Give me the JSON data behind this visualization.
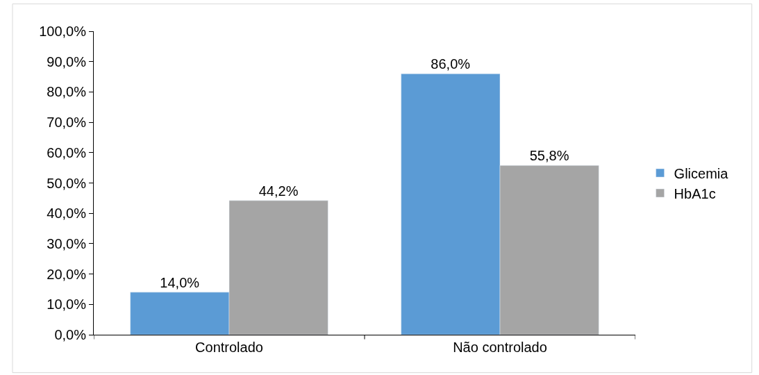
{
  "chart_data": {
    "type": "bar",
    "categories": [
      "Controlado",
      "Não controlado"
    ],
    "series": [
      {
        "name": "Glicemia",
        "color": "#5b9bd5",
        "values": [
          14.0,
          86.0
        ],
        "value_labels": [
          "14,0%",
          "86,0%"
        ]
      },
      {
        "name": "HbA1c",
        "color": "#a5a5a5",
        "values": [
          44.2,
          55.8
        ],
        "value_labels": [
          "44,2%",
          "55,8%"
        ]
      }
    ],
    "ylim": [
      0,
      100
    ],
    "yticks": [
      {
        "value": 0,
        "label": "0,0%"
      },
      {
        "value": 10,
        "label": "10,0%"
      },
      {
        "value": 20,
        "label": "20,0%"
      },
      {
        "value": 30,
        "label": "30,0%"
      },
      {
        "value": 40,
        "label": "40,0%"
      },
      {
        "value": 50,
        "label": "50,0%"
      },
      {
        "value": 60,
        "label": "60,0%"
      },
      {
        "value": 70,
        "label": "70,0%"
      },
      {
        "value": 80,
        "label": "80,0%"
      },
      {
        "value": 90,
        "label": "90,0%"
      },
      {
        "value": 100,
        "label": "100,0%"
      }
    ],
    "legend": "right"
  }
}
